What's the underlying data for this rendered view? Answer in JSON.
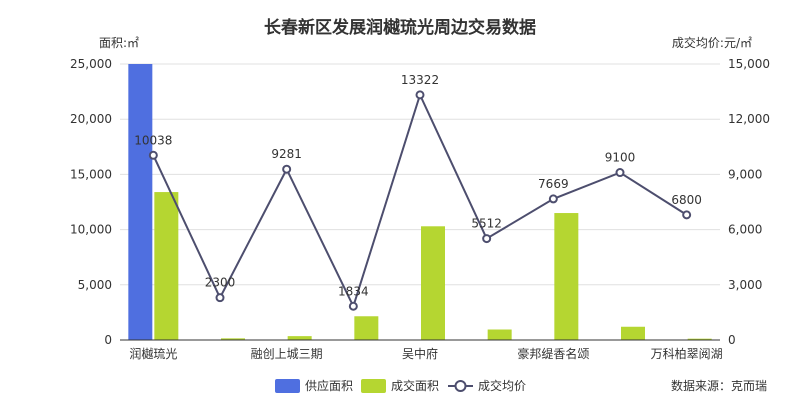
{
  "chart_data": {
    "type": "bar",
    "title": "长春新区发展润樾琉光周边交易数据",
    "ylabel_left": "面积:㎡",
    "ylabel_right": "成交均价:元/㎡",
    "ylim_left": [
      0,
      25000
    ],
    "ylim_right": [
      0,
      15000
    ],
    "yticks_left": [
      "0",
      "5,000",
      "10,000",
      "15,000",
      "20,000",
      "25,000"
    ],
    "yticks_right": [
      "0",
      "3,000",
      "6,000",
      "9,000",
      "12,000",
      "15,000"
    ],
    "categories": [
      "润樾琉光",
      "",
      "融创上城三期",
      "",
      "吴中府",
      "",
      "豪邦缇香名颂",
      "",
      "万科柏翠阅湖"
    ],
    "series": [
      {
        "name": "供应面积",
        "type": "bar",
        "axis": "left",
        "color": "#4f6fe0",
        "values": [
          25000,
          0,
          0,
          0,
          0,
          0,
          0,
          0,
          0
        ]
      },
      {
        "name": "成交面积",
        "type": "bar",
        "axis": "left",
        "color": "#b5d631",
        "values": [
          13400,
          150,
          350,
          2150,
          10300,
          950,
          11500,
          1200,
          120
        ]
      },
      {
        "name": "成交均价",
        "type": "line",
        "axis": "right",
        "color": "#4d4e6e",
        "values": [
          10038,
          2300,
          9281,
          1834,
          13322,
          5512,
          7669,
          9100,
          6800
        ],
        "labels": [
          "10038",
          "2300",
          "9281",
          "1834",
          "13322",
          "5512",
          "7669",
          "9100",
          "6800"
        ]
      }
    ],
    "legend_position": "bottom",
    "grid": true
  },
  "source": "数据来源：克而瑞"
}
